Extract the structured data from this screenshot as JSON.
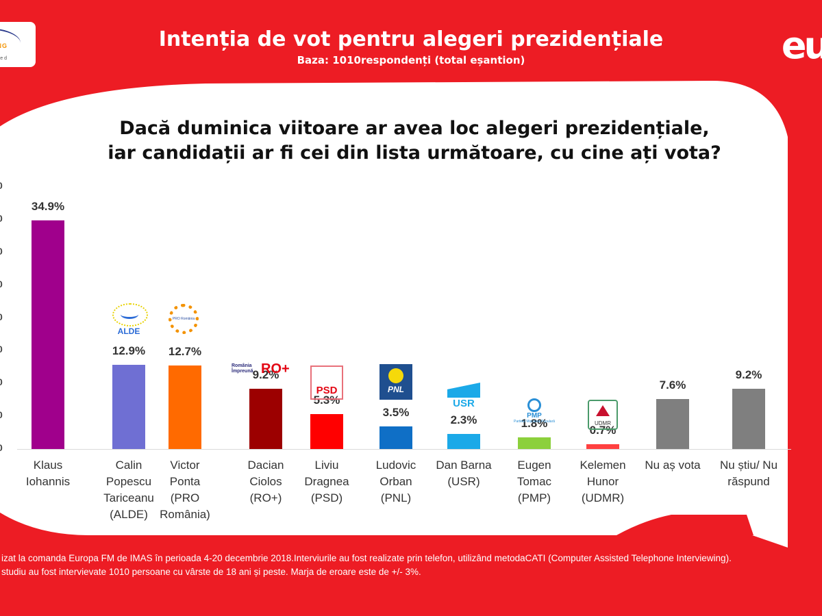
{
  "header": {
    "title": "Intenția de vot pentru alegeri prezidențiale",
    "subtitle": "Baza: 1010respondenți (total eșantion)",
    "logo_left": {
      "line1": "ING",
      "line2": "rted"
    },
    "logo_right": "eu"
  },
  "question": {
    "line1": "Dacă duminica viitoare ar avea loc alegeri prezidențiale,",
    "line2": "iar candidații ar fi cei din lista următoare, cu cine ați vota?"
  },
  "footer": {
    "line1": "izat la comanda Europa FM de IMAS în perioada 4-20 decembrie 2018.Interviurile au fost realizate prin telefon, utilizând metodaCATI (Computer Assisted Telephone Interviewing).",
    "line2": "studiu au fost intervievate 1010 persoane cu vârste de 18 ani și peste. Marja de eroare este de +/- 3%."
  },
  "colors": {
    "background": "#ed1c24",
    "panel": "#ffffff"
  },
  "chart_data": {
    "type": "bar",
    "title": "Dacă duminica viitoare ar avea loc alegeri prezidențiale, iar candidații ar fi cei din lista următoare, cu cine ați vota?",
    "xlabel": "",
    "ylabel": "",
    "ylim": [
      0,
      40
    ],
    "y_ticks": [
      "0",
      "0",
      "0",
      "0",
      "0",
      "0",
      "0",
      "0",
      "0"
    ],
    "grid": false,
    "categories": [
      [
        "Klaus",
        "Iohannis"
      ],
      [
        "Calin",
        "Popescu",
        "Tariceanu",
        "(ALDE)"
      ],
      [
        "Victor",
        "Ponta",
        "(PRO",
        "România)"
      ],
      [
        "Dacian",
        "Ciolos",
        "(RO+)"
      ],
      [
        "Liviu",
        "Dragnea",
        "(PSD)"
      ],
      [
        "Ludovic",
        "Orban",
        "(PNL)"
      ],
      [
        "Dan Barna",
        "(USR)"
      ],
      [
        "Eugen",
        "Tomac",
        "(PMP)"
      ],
      [
        "Kelemen",
        "Hunor",
        "(UDMR)"
      ],
      [
        "Nu aș vota"
      ],
      [
        "Nu știu/ Nu",
        "răspund"
      ]
    ],
    "values": [
      34.9,
      12.9,
      12.7,
      9.2,
      5.3,
      3.5,
      2.3,
      1.8,
      0.7,
      7.6,
      9.2
    ],
    "labels": [
      "34.9%",
      "12.9%",
      "12.7%",
      "9.2%",
      "5.3%",
      "3.5%",
      "2.3%",
      "1.8%",
      "0.7%",
      "7.6%",
      "9.2%"
    ],
    "bar_colors": [
      "#a0008c",
      "#6f6fd3",
      "#ff6a00",
      "#9c0000",
      "#ff0000",
      "#0f6fc6",
      "#1ba9e8",
      "#8cd03c",
      "#ff4040",
      "#7f7f7f",
      "#7f7f7f"
    ],
    "party_logos": [
      null,
      {
        "name": "ALDE",
        "icon": "alde-logo"
      },
      {
        "name": "PRO România",
        "icon": "pro-romania-logo"
      },
      {
        "name": "RO+",
        "icon": "ro-plus-logo",
        "sub": "România Împreună"
      },
      {
        "name": "PSD",
        "icon": "psd-logo"
      },
      {
        "name": "PNL",
        "icon": "pnl-logo"
      },
      {
        "name": "USR",
        "icon": "usr-logo"
      },
      {
        "name": "PMP",
        "icon": "pmp-logo",
        "sub": "Partidul Mișcarea Populară"
      },
      {
        "name": "UDMR",
        "icon": "udmr-logo"
      },
      null,
      null
    ]
  }
}
